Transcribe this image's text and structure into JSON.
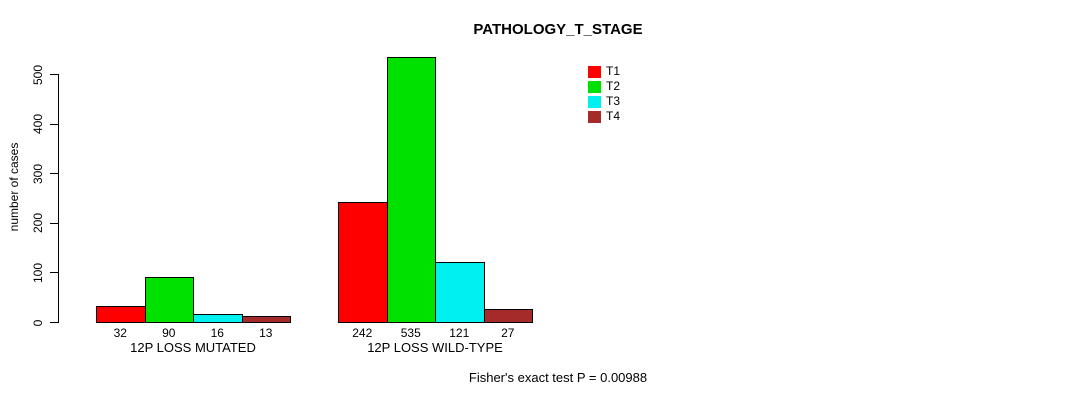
{
  "title": "PATHOLOGY_T_STAGE",
  "y_axis": {
    "label": "number of cases",
    "ticks": [
      0,
      100,
      200,
      300,
      400,
      500
    ]
  },
  "legend": {
    "items": [
      {
        "label": "T1",
        "color": "#ff0000"
      },
      {
        "label": "T2",
        "color": "#00e100"
      },
      {
        "label": "T3",
        "color": "#00efef"
      },
      {
        "label": "T4",
        "color": "#a52a2a"
      }
    ]
  },
  "footer": "Fisher's exact test P = 0.00988",
  "chart_data": {
    "type": "bar",
    "title": "PATHOLOGY_T_STAGE",
    "xlabel": "",
    "ylabel": "number of cases",
    "ylim": [
      0,
      550
    ],
    "yticks": [
      0,
      100,
      200,
      300,
      400,
      500
    ],
    "grid": false,
    "legend_position": "top-right",
    "categories": [
      "12P LOSS MUTATED",
      "12P LOSS WILD-TYPE"
    ],
    "series": [
      {
        "name": "T1",
        "color": "#ff0000",
        "values": [
          32,
          242
        ]
      },
      {
        "name": "T2",
        "color": "#00e100",
        "values": [
          90,
          535
        ]
      },
      {
        "name": "T3",
        "color": "#00efef",
        "values": [
          16,
          121
        ]
      },
      {
        "name": "T4",
        "color": "#a52a2a",
        "values": [
          13,
          27
        ]
      }
    ],
    "bar_value_labels": {
      "12P LOSS MUTATED": [
        32,
        90,
        16,
        13
      ],
      "12P LOSS WILD-TYPE": [
        242,
        535,
        121,
        27
      ]
    },
    "annotation": "Fisher's exact test P = 0.00988"
  }
}
